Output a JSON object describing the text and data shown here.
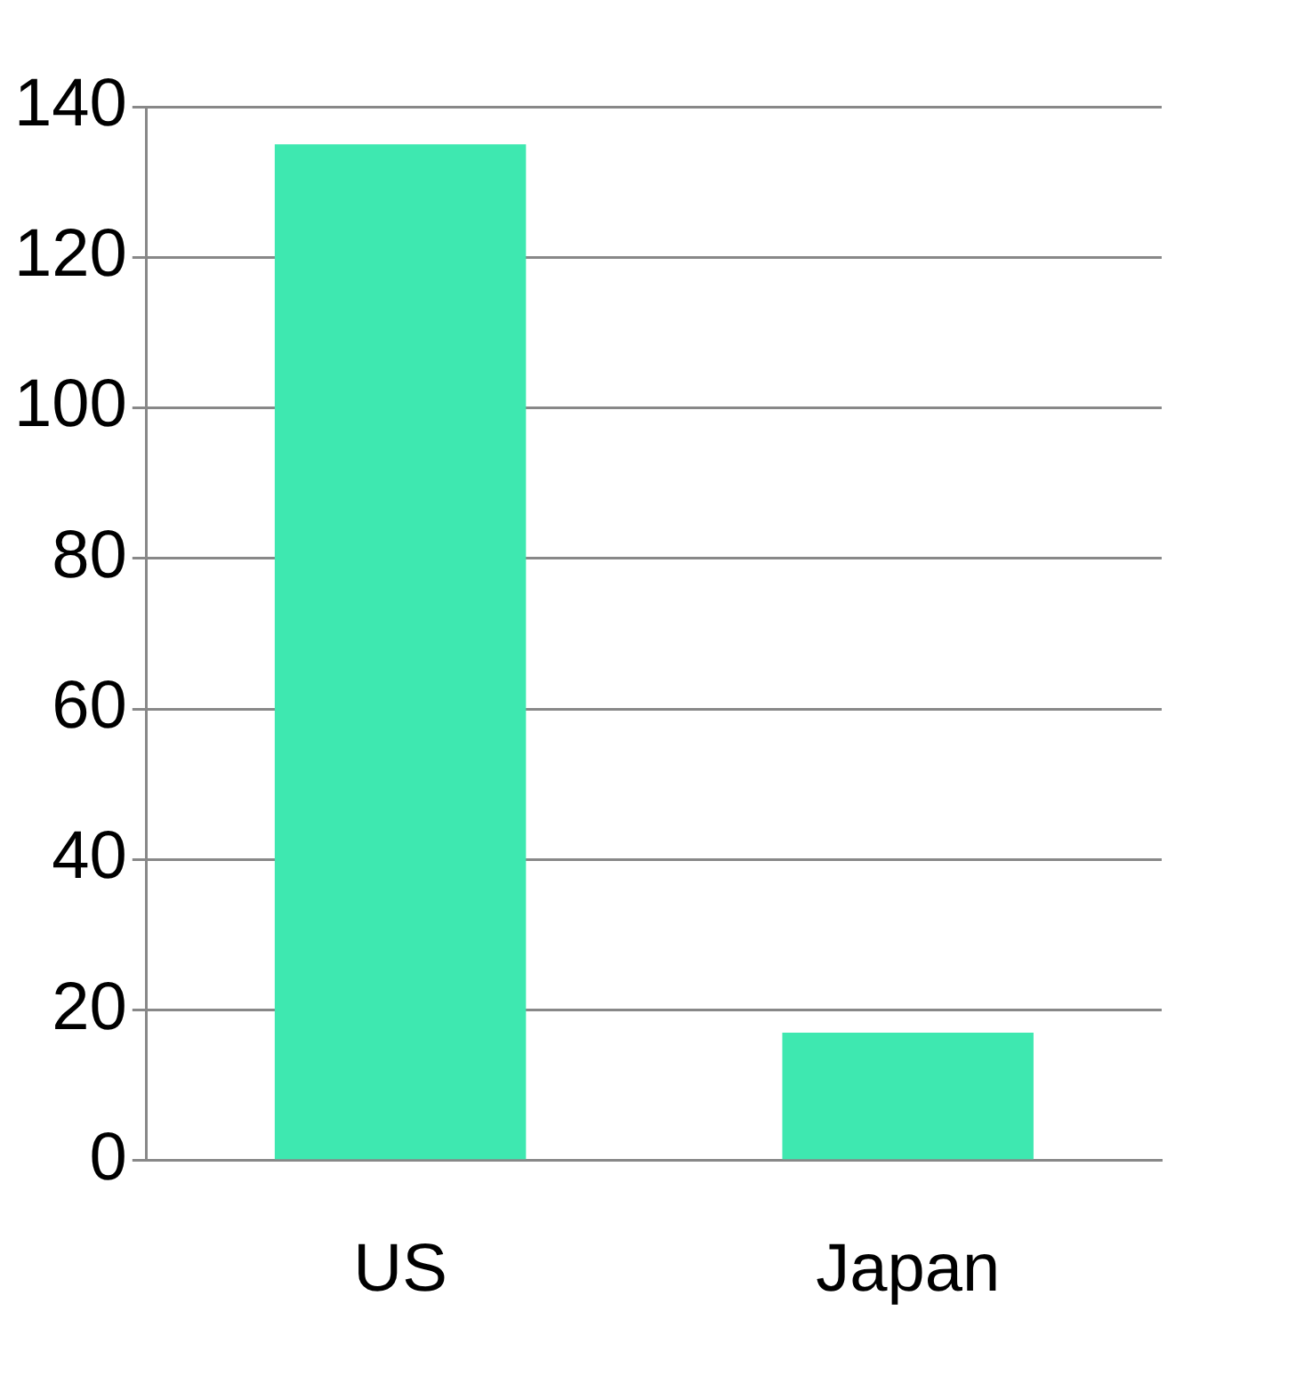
{
  "chart_data": {
    "type": "bar",
    "categories": [
      "US",
      "Japan"
    ],
    "values": [
      135,
      17
    ],
    "color": "#3ee8b0",
    "ylim": [
      0,
      140
    ],
    "yticks": [
      0,
      20,
      40,
      60,
      80,
      100,
      120,
      140
    ],
    "grid": "y",
    "legend": false
  }
}
